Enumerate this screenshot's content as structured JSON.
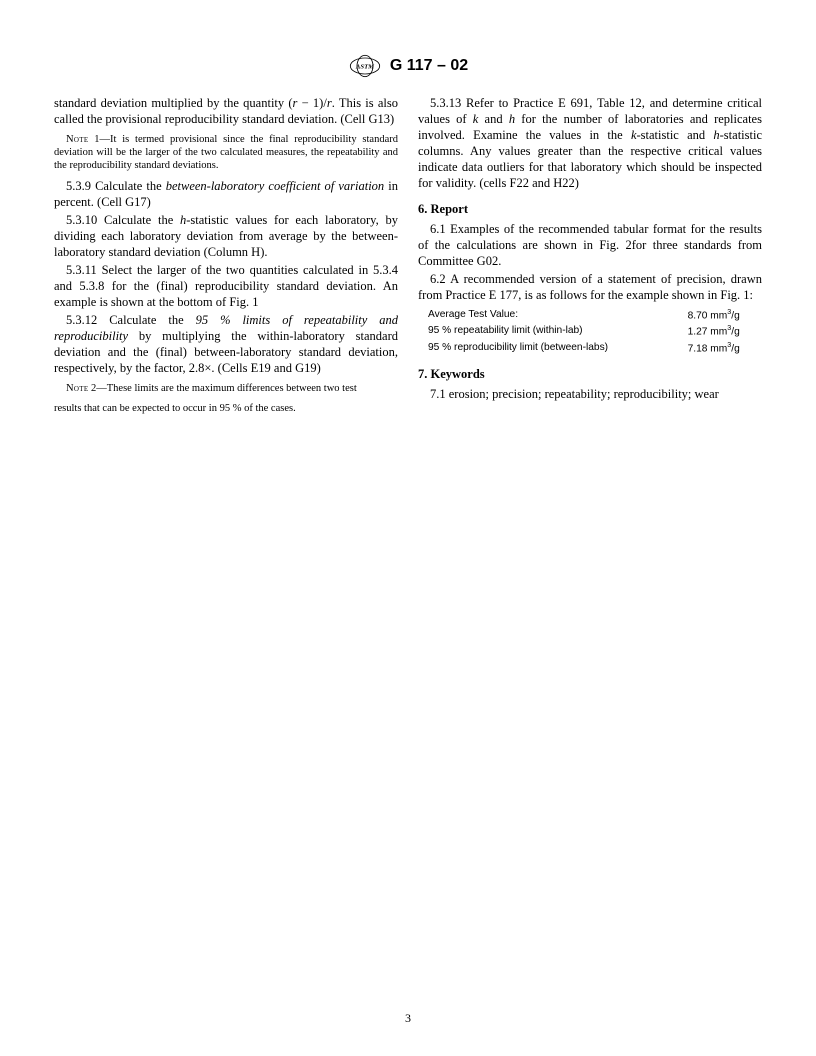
{
  "header": {
    "designation": "G 117 – 02"
  },
  "col1": {
    "p538_cont": "standard deviation multiplied by the quantity (",
    "p538_rminus": "r",
    "p538_cont2": " − 1)/",
    "p538_r2": "r",
    "p538_cont3": ". This is also called the provisional reproducibility standard deviation. (Cell G13)",
    "note1_label": "Note",
    "note1_num": " 1—",
    "note1_text": "It is termed provisional since the final reproducibility standard deviation will be the larger of the two calculated measures, the repeatability and the reproducibility standard deviations.",
    "p539_num": "5.3.9 Calculate the ",
    "p539_ital": "between-laboratory coefficient of variation",
    "p539_rest": " in percent. (Cell G17)",
    "p5310_num": "5.3.10 Calculate the ",
    "p5310_ital": "h",
    "p5310_rest": "-statistic values for each laboratory, by dividing each laboratory deviation from average by the between-laboratory standard deviation (Column H).",
    "p5311": "5.3.11 Select the larger of the two quantities calculated in 5.3.4 and 5.3.8 for the (final) reproducibility standard deviation. An example is shown at the bottom of Fig. 1",
    "p5312_num": "5.3.12 Calculate the ",
    "p5312_ital": "95 % limits of repeatability and reproducibility",
    "p5312_rest": " by multiplying the within-laboratory standard deviation and the (final) between-laboratory standard deviation, respectively, by the factor, 2.8×. (Cells E19 and G19)",
    "note2_label": "Note",
    "note2_num": " 2—",
    "note2_text": "These limits are the maximum differences between two test"
  },
  "col2": {
    "note2_cont": "results that can be expected to occur in 95 % of the cases.",
    "p5313_a": "5.3.13 Refer to Practice E 691, Table 12, and determine critical values of ",
    "p5313_k": "k",
    "p5313_b": " and ",
    "p5313_h": "h",
    "p5313_c": " for the number of laboratories and replicates involved. Examine the values in the ",
    "p5313_k2": "k",
    "p5313_d": "-statistic and ",
    "p5313_h2": "h",
    "p5313_e": "-statistic columns. Any values greater than the respective critical values indicate data outliers for that laboratory which should be inspected for validity. (cells F22 and H22)",
    "sec6": "6.  Report",
    "p61": "6.1 Examples of the recommended tabular format for the results of the calculations are shown in Fig. 2for three standards from Committee G02.",
    "p62": "6.2 A recommended version of a statement of precision, drawn from Practice E 177, is as follows for the example shown in Fig. 1:",
    "table": {
      "rows": [
        {
          "label": "Average Test Value:",
          "value_num": "8.70",
          "value_unit_pre": " mm",
          "value_sup": "3",
          "value_unit_post": "/g"
        },
        {
          "label": "95 % repeatability limit (within-lab)",
          "value_num": "1.27",
          "value_unit_pre": " mm",
          "value_sup": "3",
          "value_unit_post": "/g"
        },
        {
          "label": "95 % reproducibility limit (between-labs)",
          "value_num": "7.18",
          "value_unit_pre": " mm",
          "value_sup": "3",
          "value_unit_post": "/g"
        }
      ]
    },
    "sec7": "7.  Keywords",
    "p71": "7.1 erosion; precision; repeatability; reproducibility; wear"
  },
  "page_number": "3"
}
